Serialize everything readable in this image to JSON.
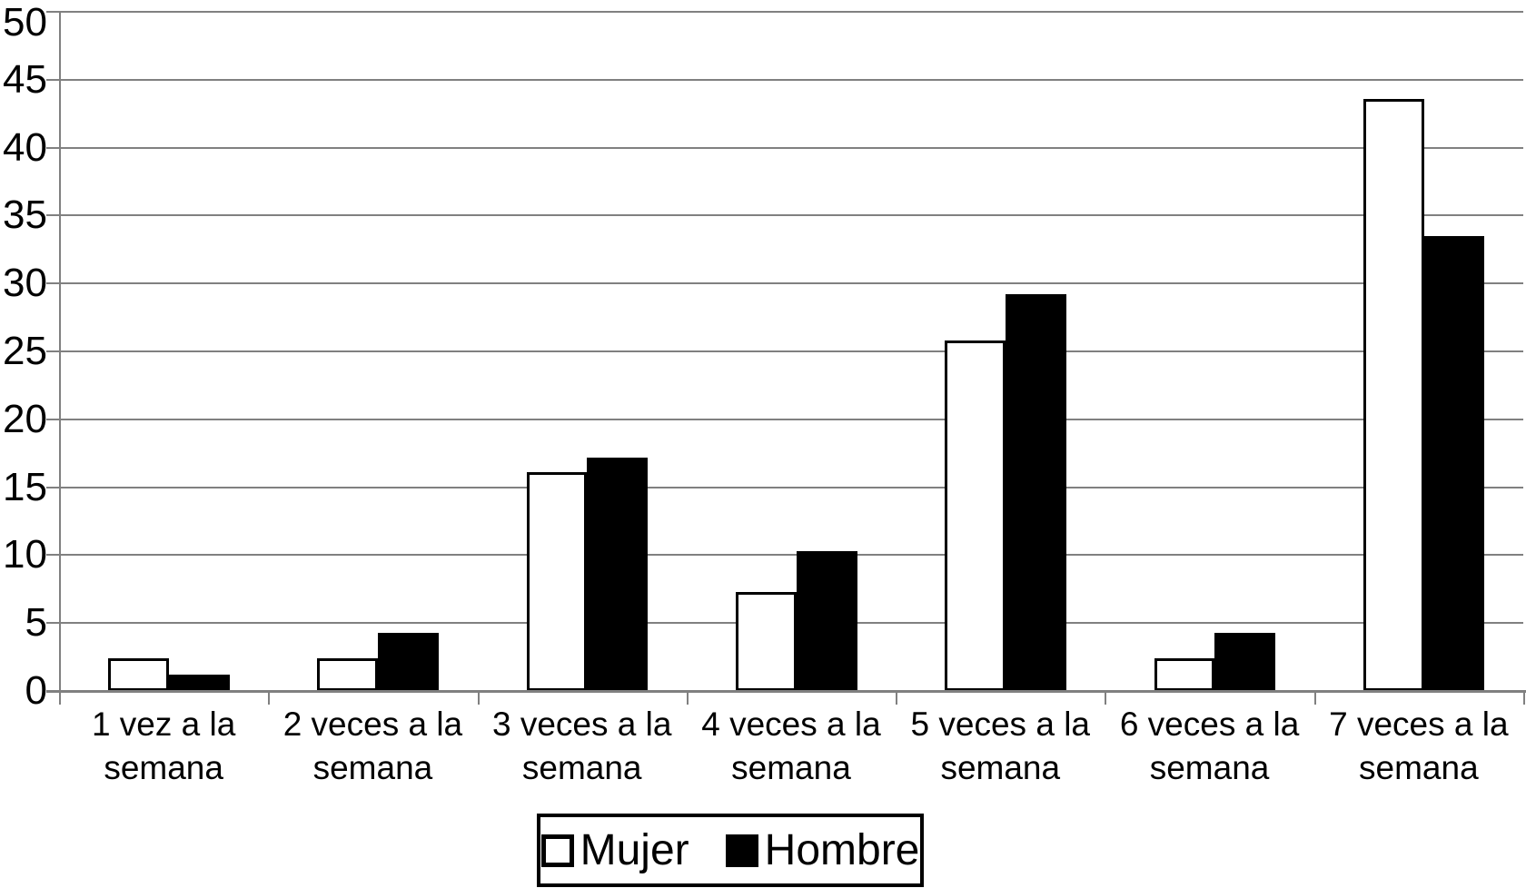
{
  "chart_data": {
    "type": "bar",
    "title": "",
    "xlabel": "",
    "ylabel": "",
    "categories": [
      "1 vez a la semana",
      "2 veces a la semana",
      "3 veces a la semana",
      "4 veces a la semana",
      "5 veces a la semana",
      "6 veces a la semana",
      "7 veces a la semana"
    ],
    "series": [
      {
        "name": "Mujer",
        "fill": "#ffffff",
        "stroke": "#000000",
        "values": [
          2.4,
          2.4,
          16.1,
          7.3,
          25.8,
          2.4,
          43.6
        ]
      },
      {
        "name": "Hombre",
        "fill": "#000000",
        "stroke": "#000000",
        "values": [
          1.2,
          4.3,
          17.2,
          10.3,
          29.2,
          4.3,
          33.5
        ]
      }
    ],
    "ylim": [
      0,
      50
    ],
    "yticks": [
      0,
      5,
      10,
      15,
      20,
      25,
      30,
      35,
      40,
      45,
      50
    ],
    "grid": true,
    "legend_position": "bottom",
    "gridline_color": "#808080",
    "axis_color": "#808080",
    "text_color": "#000000"
  }
}
